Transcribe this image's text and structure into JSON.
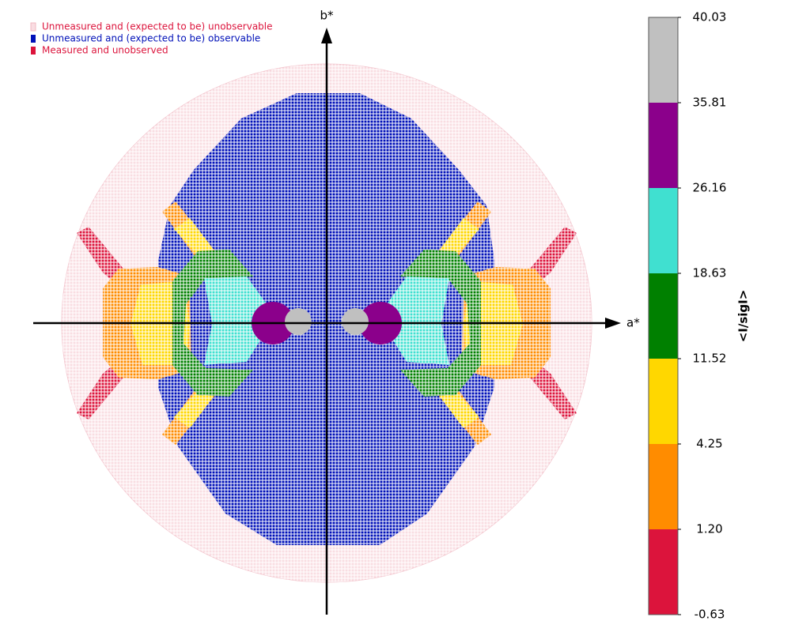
{
  "chart_data": {
    "type": "reciprocal-space",
    "xlabel": "a*",
    "ylabel": "b*",
    "legend": [
      {
        "name": "Unmeasured and (expected to be) unobservable",
        "color": "#f9dde2"
      },
      {
        "name": "Unmeasured and (expected to be) observable",
        "color": "#0010b8"
      },
      {
        "name": "Measured and unobserved",
        "color": "#dc143c"
      }
    ],
    "colorbar": {
      "label": "<I/sigI>",
      "ticks": [
        -0.63,
        {
          "value": 1.2,
          "label": "1.20"
        },
        4.25,
        11.52,
        18.63,
        26.16,
        35.81,
        40.03
      ],
      "colors": [
        "#dc143c",
        "#ff8c00",
        "#ffd700",
        "#008000",
        "#40e0d0",
        "#8b008b",
        "#c0c0c0"
      ]
    }
  }
}
